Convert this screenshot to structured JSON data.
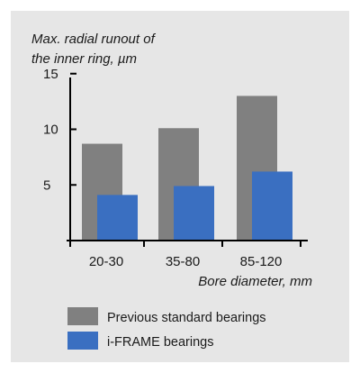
{
  "chart_data": {
    "type": "bar",
    "ylabel_lines": [
      "Max. radial runout of",
      "the inner ring, µm"
    ],
    "xlabel": "Bore diameter, mm",
    "categories": [
      "20-30",
      "35-80",
      "85-120"
    ],
    "yticks": [
      5,
      10,
      15
    ],
    "ylim": [
      0,
      15
    ],
    "grid": false,
    "legend_position": "bottom",
    "series": [
      {
        "name": "Previous standard bearings",
        "color": "#808080",
        "values": [
          8.7,
          10.1,
          13.0
        ]
      },
      {
        "name": "i-FRAME bearings",
        "color": "#3a6fc1",
        "values": [
          4.1,
          4.9,
          6.2
        ]
      }
    ]
  }
}
